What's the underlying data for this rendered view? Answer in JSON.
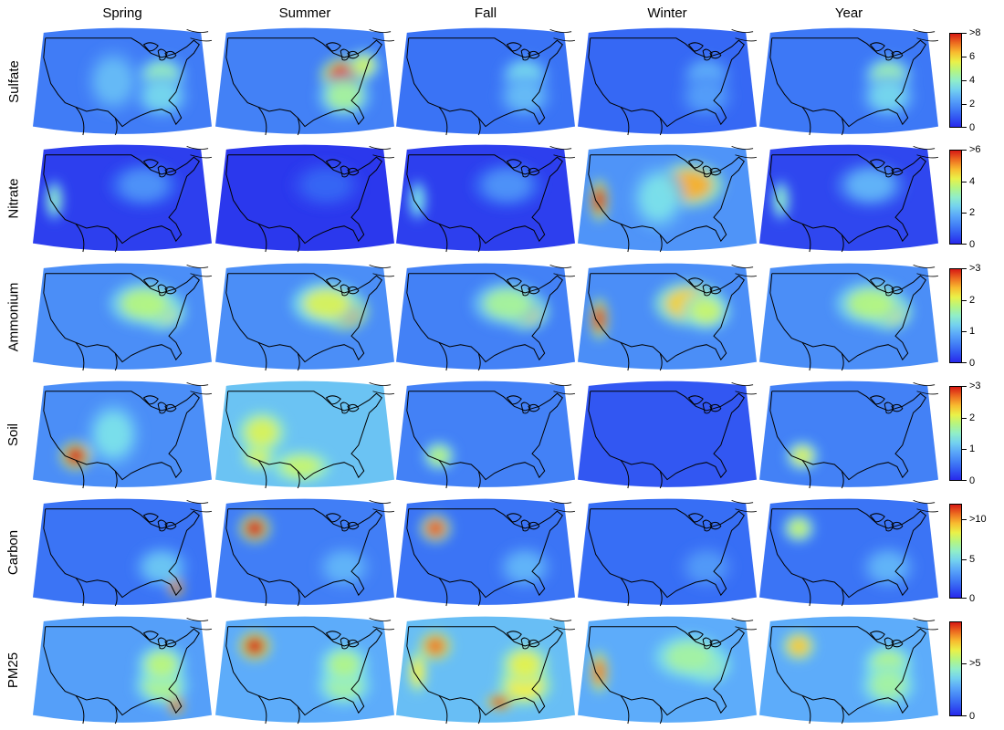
{
  "columns": [
    {
      "key": "spring",
      "label": "Spring"
    },
    {
      "key": "summer",
      "label": "Summer"
    },
    {
      "key": "fall",
      "label": "Fall"
    },
    {
      "key": "winter",
      "label": "Winter"
    },
    {
      "key": "year",
      "label": "Year"
    }
  ],
  "rows": [
    {
      "key": "sulfate",
      "label": "Sulfate",
      "colorbar": {
        "min": 0,
        "max": 8,
        "ticks": [
          {
            "v": 0,
            "label": "0"
          },
          {
            "v": 2,
            "label": "2"
          },
          {
            "v": 4,
            "label": "4"
          },
          {
            "v": 6,
            "label": "6"
          },
          {
            "v": 8,
            "label": ">8"
          }
        ]
      },
      "seasons": {
        "spring": {
          "base": 1.5,
          "hotspots": [
            {
              "region": "ohio-valley",
              "value": 4.2
            },
            {
              "region": "southeast",
              "value": 3.3
            },
            {
              "region": "great-plains",
              "value": 2.8
            }
          ]
        },
        "summer": {
          "base": 1.6,
          "hotspots": [
            {
              "region": "ohio-valley",
              "value": 7.6
            },
            {
              "region": "northeast",
              "value": 5.2
            },
            {
              "region": "southeast",
              "value": 4.5
            }
          ]
        },
        "fall": {
          "base": 1.3,
          "hotspots": [
            {
              "region": "ohio-valley",
              "value": 3.4
            },
            {
              "region": "southeast",
              "value": 2.8
            }
          ]
        },
        "winter": {
          "base": 1.1,
          "hotspots": [
            {
              "region": "ohio-valley",
              "value": 2.6
            },
            {
              "region": "southeast",
              "value": 2.2
            }
          ]
        },
        "year": {
          "base": 1.4,
          "hotspots": [
            {
              "region": "ohio-valley",
              "value": 4.3
            },
            {
              "region": "southeast",
              "value": 3.3
            }
          ]
        }
      }
    },
    {
      "key": "nitrate",
      "label": "Nitrate",
      "colorbar": {
        "min": 0,
        "max": 6,
        "ticks": [
          {
            "v": 0,
            "label": "0"
          },
          {
            "v": 2,
            "label": "2"
          },
          {
            "v": 4,
            "label": "4"
          },
          {
            "v": 6,
            "label": ">6"
          }
        ]
      },
      "seasons": {
        "spring": {
          "base": 0.3,
          "hotspots": [
            {
              "region": "midwest",
              "value": 1.5
            },
            {
              "region": "california",
              "value": 3.0
            }
          ]
        },
        "summer": {
          "base": 0.2,
          "hotspots": [
            {
              "region": "midwest",
              "value": 0.8
            }
          ]
        },
        "fall": {
          "base": 0.3,
          "hotspots": [
            {
              "region": "midwest",
              "value": 1.5
            },
            {
              "region": "california",
              "value": 2.7
            }
          ]
        },
        "winter": {
          "base": 1.5,
          "hotspots": [
            {
              "region": "midwest",
              "value": 4.9
            },
            {
              "region": "california",
              "value": 6.0
            },
            {
              "region": "great-plains",
              "value": 2.6
            }
          ]
        },
        "year": {
          "base": 0.4,
          "hotspots": [
            {
              "region": "midwest",
              "value": 2.0
            },
            {
              "region": "california",
              "value": 3.0
            }
          ]
        }
      }
    },
    {
      "key": "ammonium",
      "label": "Ammonium",
      "colorbar": {
        "min": 0,
        "max": 3,
        "ticks": [
          {
            "v": 0,
            "label": "0"
          },
          {
            "v": 1,
            "label": "1"
          },
          {
            "v": 2,
            "label": "2"
          },
          {
            "v": 3,
            "label": ">3"
          }
        ]
      },
      "seasons": {
        "spring": {
          "base": 0.7,
          "hotspots": [
            {
              "region": "ohio-valley",
              "value": 2.1
            },
            {
              "region": "midwest",
              "value": 1.8
            }
          ]
        },
        "summer": {
          "base": 0.7,
          "hotspots": [
            {
              "region": "ohio-valley",
              "value": 2.7
            },
            {
              "region": "midwest",
              "value": 2.0
            }
          ]
        },
        "fall": {
          "base": 0.6,
          "hotspots": [
            {
              "region": "ohio-valley",
              "value": 2.3
            },
            {
              "region": "midwest",
              "value": 1.7
            }
          ]
        },
        "winter": {
          "base": 0.7,
          "hotspots": [
            {
              "region": "midwest",
              "value": 2.3
            },
            {
              "region": "california",
              "value": 2.9
            },
            {
              "region": "ohio-valley",
              "value": 1.9
            }
          ]
        },
        "year": {
          "base": 0.7,
          "hotspots": [
            {
              "region": "ohio-valley",
              "value": 2.2
            },
            {
              "region": "midwest",
              "value": 1.8
            }
          ]
        }
      }
    },
    {
      "key": "soil",
      "label": "Soil",
      "colorbar": {
        "min": 0,
        "max": 3,
        "ticks": [
          {
            "v": 0,
            "label": "0"
          },
          {
            "v": 1,
            "label": "1"
          },
          {
            "v": 2,
            "label": "2"
          },
          {
            "v": 3,
            "label": ">3"
          }
        ]
      },
      "seasons": {
        "spring": {
          "base": 0.7,
          "hotspots": [
            {
              "region": "southwest",
              "value": 3.0
            },
            {
              "region": "great-plains",
              "value": 1.3
            }
          ]
        },
        "summer": {
          "base": 1.1,
          "hotspots": [
            {
              "region": "southwest",
              "value": 2.0
            },
            {
              "region": "texas",
              "value": 1.9
            },
            {
              "region": "great-basin",
              "value": 2.0
            }
          ]
        },
        "fall": {
          "base": 0.6,
          "hotspots": [
            {
              "region": "southwest",
              "value": 1.8
            }
          ]
        },
        "winter": {
          "base": 0.3,
          "hotspots": []
        },
        "year": {
          "base": 0.6,
          "hotspots": [
            {
              "region": "southwest",
              "value": 2.0
            }
          ]
        }
      }
    },
    {
      "key": "carbon",
      "label": "Carbon",
      "colorbar": {
        "min": 0,
        "max": 12,
        "ticks": [
          {
            "v": 0,
            "label": "0"
          },
          {
            "v": 5,
            "label": "5"
          },
          {
            "v": 10,
            "label": ">10"
          }
        ]
      },
      "seasons": {
        "spring": {
          "base": 2.0,
          "hotspots": [
            {
              "region": "southeast",
              "value": 4.5
            },
            {
              "region": "florida",
              "value": 12.0
            }
          ]
        },
        "summer": {
          "base": 2.3,
          "hotspots": [
            {
              "region": "northwest",
              "value": 12.0
            },
            {
              "region": "southeast",
              "value": 4.0
            }
          ]
        },
        "fall": {
          "base": 2.0,
          "hotspots": [
            {
              "region": "northwest",
              "value": 11.0
            },
            {
              "region": "southeast",
              "value": 4.0
            }
          ]
        },
        "winter": {
          "base": 1.8,
          "hotspots": [
            {
              "region": "southeast",
              "value": 3.2
            }
          ]
        },
        "year": {
          "base": 2.0,
          "hotspots": [
            {
              "region": "northwest",
              "value": 7.5
            },
            {
              "region": "southeast",
              "value": 4.0
            }
          ]
        }
      }
    },
    {
      "key": "pm25",
      "label": "PM25",
      "colorbar": {
        "min": 0,
        "max": 9,
        "ticks": [
          {
            "v": 0,
            "label": "0"
          },
          {
            "v": 5,
            "label": ">5"
          }
        ]
      },
      "seasons": {
        "spring": {
          "base": 2.5,
          "hotspots": [
            {
              "region": "southeast",
              "value": 5.3
            },
            {
              "region": "ohio-valley",
              "value": 5.5
            },
            {
              "region": "florida",
              "value": 9.0
            }
          ]
        },
        "summer": {
          "base": 2.8,
          "hotspots": [
            {
              "region": "northwest",
              "value": 9.0
            },
            {
              "region": "southeast",
              "value": 5.0
            },
            {
              "region": "ohio-valley",
              "value": 5.3
            }
          ]
        },
        "fall": {
          "base": 3.2,
          "hotspots": [
            {
              "region": "southeast",
              "value": 6.5
            },
            {
              "region": "ohio-valley",
              "value": 6.2
            },
            {
              "region": "gulf-coast",
              "value": 9.0
            },
            {
              "region": "northwest",
              "value": 8.0
            },
            {
              "region": "california",
              "value": 6.5
            }
          ]
        },
        "winter": {
          "base": 2.8,
          "hotspots": [
            {
              "region": "ohio-valley",
              "value": 5.5
            },
            {
              "region": "california",
              "value": 8.0
            },
            {
              "region": "midwest",
              "value": 5.0
            }
          ]
        },
        "year": {
          "base": 2.8,
          "hotspots": [
            {
              "region": "ohio-valley",
              "value": 5.4
            },
            {
              "region": "southeast",
              "value": 5.0
            },
            {
              "region": "northwest",
              "value": 7.0
            }
          ]
        }
      }
    }
  ]
}
